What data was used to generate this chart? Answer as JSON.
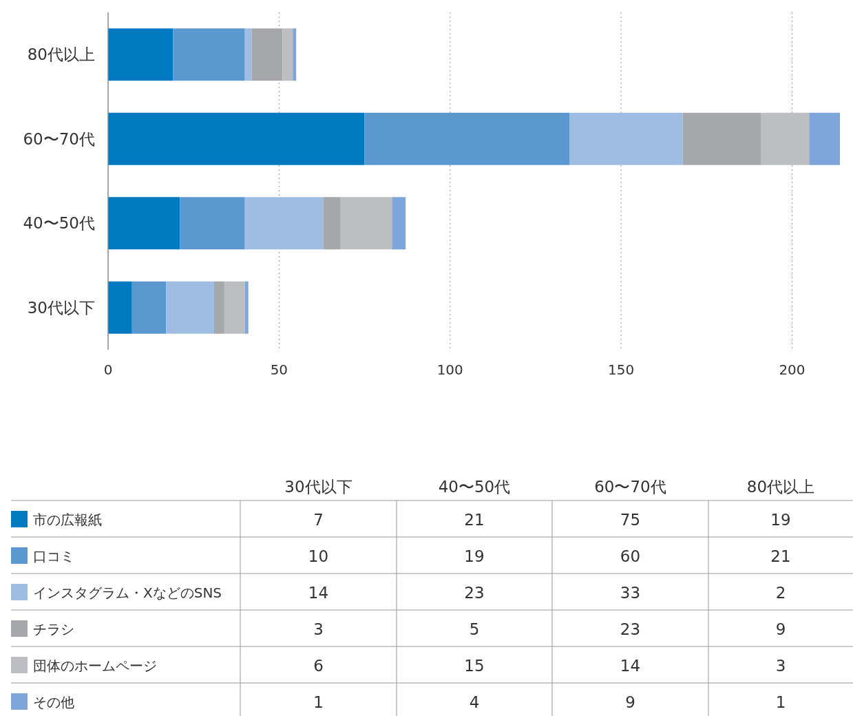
{
  "chart_data": [
    {
      "type": "bar",
      "orientation": "horizontal",
      "stacked": true,
      "categories": [
        "80代以上",
        "60〜70代",
        "40〜50代",
        "30代以下"
      ],
      "series": [
        {
          "name": "市の広報紙",
          "color": "#0079c1",
          "values": [
            19,
            75,
            21,
            7
          ]
        },
        {
          "name": "口コミ",
          "color": "#5b98d0",
          "values": [
            21,
            60,
            19,
            10
          ]
        },
        {
          "name": "インスタグラム・XなどのSNS",
          "color": "#9fbde2",
          "values": [
            2,
            33,
            23,
            14
          ]
        },
        {
          "name": "チラシ",
          "color": "#a6a7ab",
          "values": [
            9,
            23,
            5,
            3
          ]
        },
        {
          "name": "団体のホームページ",
          "color": "#bdbec2",
          "values": [
            3,
            14,
            15,
            6
          ]
        },
        {
          "name": "その他",
          "color": "#7ea6da",
          "values": [
            1,
            9,
            4,
            1
          ]
        }
      ],
      "xlim": [
        0,
        215
      ],
      "xticks": [
        0,
        50,
        100,
        150,
        200
      ],
      "grid": "x",
      "legend": "bottom"
    },
    {
      "type": "heatmap",
      "categories": [
        "30代以下",
        "40〜50代",
        "60〜70代",
        "80代以上"
      ],
      "y_categories": [
        null,
        null,
        null,
        null,
        null,
        null
      ],
      "cells": [
        [
          7,
          21,
          75,
          19
        ],
        [
          10,
          19,
          60,
          21
        ],
        [
          14,
          23,
          33,
          2
        ],
        [
          3,
          5,
          23,
          9
        ],
        [
          6,
          15,
          14,
          3
        ],
        [
          1,
          4,
          9,
          1
        ]
      ],
      "data_labels": true
    }
  ]
}
